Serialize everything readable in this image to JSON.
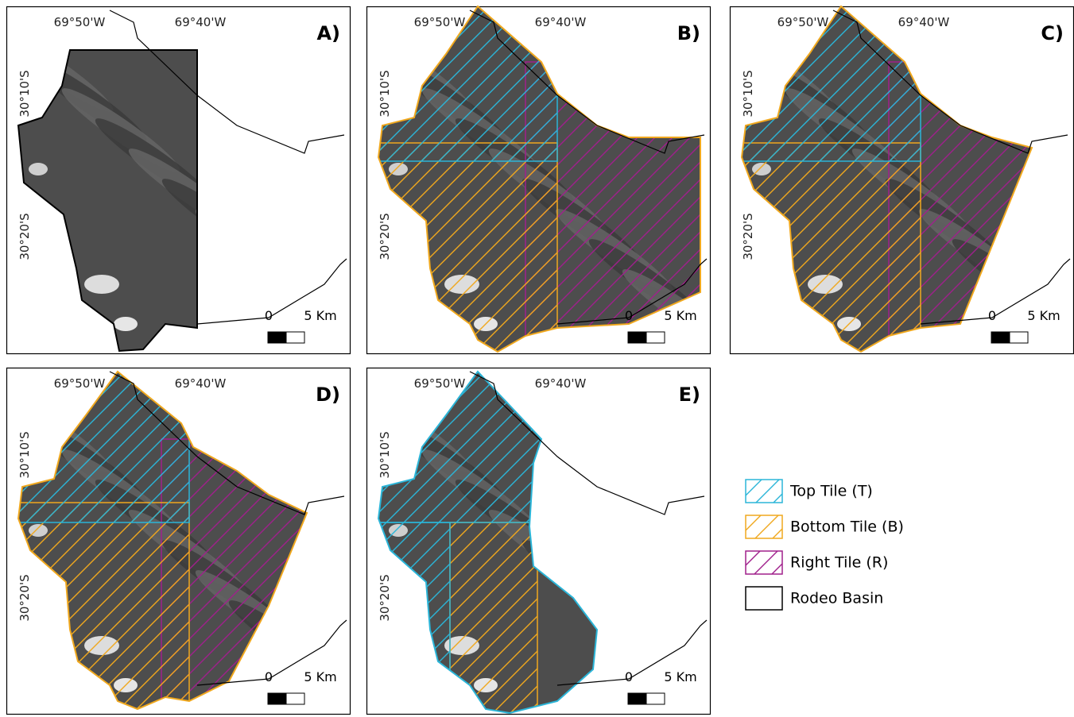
{
  "panels": [
    {
      "label": "A)",
      "lon_labels": [
        "69°50'W",
        "69°40'W"
      ],
      "lat_labels": [
        "30°10'S",
        "30°20'S"
      ],
      "scale_labels": [
        "0",
        "5 Km"
      ]
    },
    {
      "label": "B)",
      "lon_labels": [
        "69°50'W",
        "69°40'W"
      ],
      "lat_labels": [
        "30°10'S",
        "30°20'S"
      ],
      "scale_labels": [
        "0",
        "5 Km"
      ]
    },
    {
      "label": "C)",
      "lon_labels": [
        "69°50'W",
        "69°40'W"
      ],
      "lat_labels": [
        "30°10'S",
        "30°20'S"
      ],
      "scale_labels": [
        "0",
        "5 Km"
      ]
    },
    {
      "label": "D)",
      "lon_labels": [
        "69°50'W",
        "69°40'W"
      ],
      "lat_labels": [
        "30°10'S",
        "30°20'S"
      ],
      "scale_labels": [
        "0",
        "5 Km"
      ]
    },
    {
      "label": "E)",
      "lon_labels": [
        "69°50'W",
        "69°40'W"
      ],
      "lat_labels": [
        "30°10'S",
        "30°20'S"
      ],
      "scale_labels": [
        "0",
        "5 Km"
      ]
    }
  ],
  "legend": [
    {
      "label": "Top Tile (T)",
      "color": "#2bb5d8"
    },
    {
      "label": "Bottom Tile (B)",
      "color": "#f0a81e"
    },
    {
      "label": "Right Tile (R)",
      "color": "#a0208c"
    },
    {
      "label": "Rodeo Basin",
      "color": "#000000"
    }
  ]
}
